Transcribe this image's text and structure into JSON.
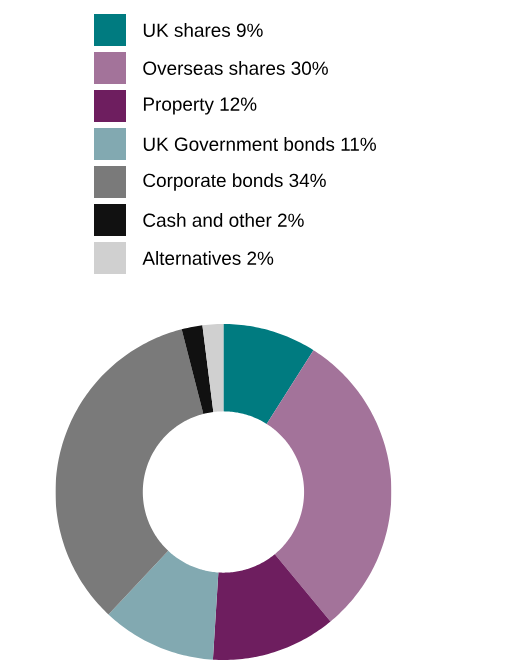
{
  "chart_data": {
    "type": "donut",
    "categories": [
      "UK shares 9%",
      "Overseas shares 30%",
      "Property 12%",
      "UK Government bonds 11%",
      "Corporate bonds 34%",
      "Cash and other 2%",
      "Alternatives 2%"
    ],
    "values": [
      9,
      30,
      12,
      11,
      34,
      2,
      2
    ],
    "colors": [
      "#007b80",
      "#a3739a",
      "#6e1e5f",
      "#82a9b1",
      "#7a7a7a",
      "#111111",
      "#d0d0d0"
    ],
    "legend": "top"
  }
}
